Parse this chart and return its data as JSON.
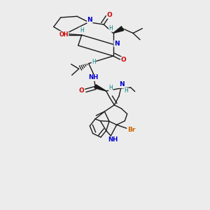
{
  "background_color": "#ececec",
  "figsize": [
    3.0,
    3.0
  ],
  "dpi": 100,
  "C_color": "#1a1a1a",
  "N_color": "#0000cc",
  "O_color": "#cc0000",
  "Br_color": "#cc6600",
  "H_color": "#008080",
  "bond_lw": 1.0,
  "xlim": [
    0.05,
    0.95
  ],
  "ylim": [
    0.05,
    0.95
  ]
}
